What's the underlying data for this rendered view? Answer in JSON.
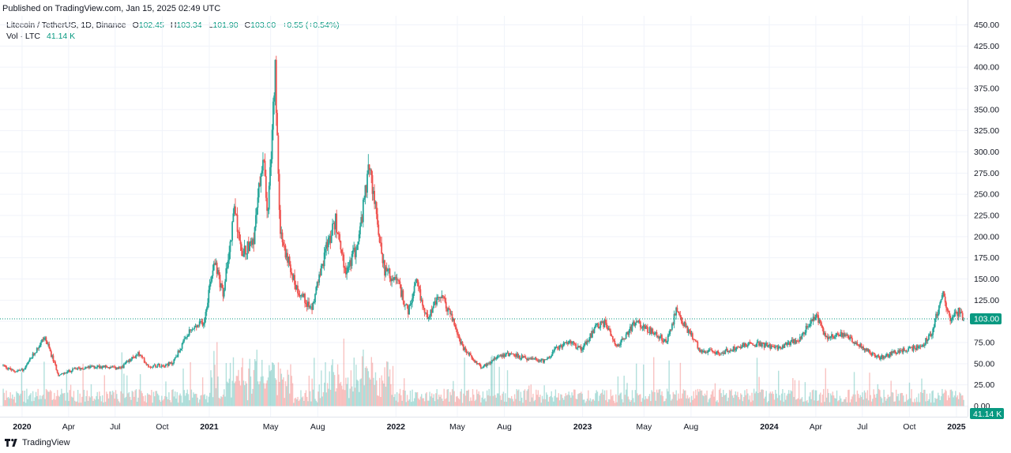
{
  "header": {
    "published": "Published on TradingView.com, Jan 15, 2025 02:49 UTC"
  },
  "legend": {
    "symbol": "Litecoin / TetherUS, 1D, Binance",
    "o_label": "O",
    "o_value": "102.45",
    "h_label": "H",
    "h_value": "103.34",
    "l_label": "L",
    "l_value": "101.90",
    "c_label": "C",
    "c_value": "103.00",
    "change": "+0.55 (+0.54%)",
    "vol_label": "Vol · LTC",
    "vol_value": "41.14 K"
  },
  "footer": {
    "brand": "TradingView"
  },
  "colors": {
    "up": "#26a69a",
    "down": "#ef5350",
    "price_line": "#089981",
    "grid": "#f0f3fa"
  },
  "chart_data": {
    "type": "candlestick",
    "title": "Litecoin / TetherUS, 1D, Binance",
    "ylim": [
      0,
      450
    ],
    "y_ticks": [
      0,
      25,
      50,
      75,
      100,
      125,
      150,
      175,
      200,
      225,
      250,
      275,
      300,
      325,
      350,
      375,
      400,
      425,
      450
    ],
    "y_tick_labels": [
      "0.00",
      "25.00",
      "50.00",
      "75.00",
      "100.00",
      "125.00",
      "150.00",
      "175.00",
      "200.00",
      "225.00",
      "250.00",
      "275.00",
      "300.00",
      "325.00",
      "350.00",
      "375.00",
      "400.00",
      "425.00",
      "450.00"
    ],
    "x_ticks": [
      "2020-01-01",
      "2020-04-01",
      "2020-07-01",
      "2020-10-01",
      "2021-01-01",
      "2021-05-01",
      "2021-08-01",
      "2022-01-01",
      "2022-05-01",
      "2022-08-01",
      "2023-01-01",
      "2023-05-01",
      "2023-08-01",
      "2024-01-01",
      "2024-04-01",
      "2024-07-01",
      "2024-10-01",
      "2025-01-01"
    ],
    "x_tick_labels": [
      "2020",
      "Apr",
      "Jul",
      "Oct",
      "2021",
      "May",
      "Aug",
      "2022",
      "May",
      "Aug",
      "2023",
      "May",
      "Aug",
      "2024",
      "Apr",
      "Jul",
      "Oct",
      "2025"
    ],
    "x_tick_bold": [
      true,
      false,
      false,
      false,
      true,
      false,
      false,
      true,
      false,
      false,
      true,
      false,
      false,
      true,
      false,
      false,
      false,
      true
    ],
    "x_range": [
      "2019-11-25",
      "2025-01-15"
    ],
    "last_price": 103.0,
    "last_price_label": "103.00",
    "last_volume_label": "41.14 K",
    "grid": true,
    "price_anchors": [
      [
        "2019-11-25",
        48
      ],
      [
        "2019-12-15",
        41
      ],
      [
        "2020-01-05",
        43
      ],
      [
        "2020-02-14",
        82
      ],
      [
        "2020-03-13",
        36
      ],
      [
        "2020-04-15",
        44
      ],
      [
        "2020-06-01",
        47
      ],
      [
        "2020-07-10",
        44
      ],
      [
        "2020-08-15",
        62
      ],
      [
        "2020-09-05",
        47
      ],
      [
        "2020-10-20",
        50
      ],
      [
        "2020-11-24",
        88
      ],
      [
        "2020-12-22",
        100
      ],
      [
        "2021-01-10",
        175
      ],
      [
        "2021-01-28",
        130
      ],
      [
        "2021-02-20",
        235
      ],
      [
        "2021-03-05",
        180
      ],
      [
        "2021-03-30",
        200
      ],
      [
        "2021-04-16",
        300
      ],
      [
        "2021-04-25",
        215
      ],
      [
        "2021-05-10",
        400
      ],
      [
        "2021-05-20",
        200
      ],
      [
        "2021-06-20",
        140
      ],
      [
        "2021-07-20",
        115
      ],
      [
        "2021-08-15",
        180
      ],
      [
        "2021-09-05",
        220
      ],
      [
        "2021-09-25",
        155
      ],
      [
        "2021-10-20",
        195
      ],
      [
        "2021-11-10",
        285
      ],
      [
        "2021-11-25",
        220
      ],
      [
        "2021-12-10",
        160
      ],
      [
        "2022-01-05",
        145
      ],
      [
        "2022-01-25",
        110
      ],
      [
        "2022-02-10",
        145
      ],
      [
        "2022-03-01",
        105
      ],
      [
        "2022-03-30",
        130
      ],
      [
        "2022-04-20",
        105
      ],
      [
        "2022-05-12",
        68
      ],
      [
        "2022-06-18",
        45
      ],
      [
        "2022-07-20",
        60
      ],
      [
        "2022-08-15",
        62
      ],
      [
        "2022-09-10",
        56
      ],
      [
        "2022-10-20",
        53
      ],
      [
        "2022-11-05",
        65
      ],
      [
        "2022-12-01",
        76
      ],
      [
        "2022-12-30",
        68
      ],
      [
        "2023-01-30",
        95
      ],
      [
        "2023-02-15",
        98
      ],
      [
        "2023-03-10",
        70
      ],
      [
        "2023-04-15",
        100
      ],
      [
        "2023-05-15",
        88
      ],
      [
        "2023-06-15",
        76
      ],
      [
        "2023-07-03",
        112
      ],
      [
        "2023-07-25",
        90
      ],
      [
        "2023-08-20",
        65
      ],
      [
        "2023-10-01",
        63
      ],
      [
        "2023-11-10",
        72
      ],
      [
        "2023-12-10",
        74
      ],
      [
        "2024-01-20",
        68
      ],
      [
        "2024-03-01",
        80
      ],
      [
        "2024-04-01",
        108
      ],
      [
        "2024-04-20",
        82
      ],
      [
        "2024-05-20",
        85
      ],
      [
        "2024-06-20",
        75
      ],
      [
        "2024-07-10",
        65
      ],
      [
        "2024-08-05",
        57
      ],
      [
        "2024-09-15",
        66
      ],
      [
        "2024-10-25",
        70
      ],
      [
        "2024-11-15",
        88
      ],
      [
        "2024-12-05",
        135
      ],
      [
        "2024-12-20",
        100
      ],
      [
        "2025-01-05",
        112
      ],
      [
        "2025-01-15",
        103
      ]
    ]
  }
}
